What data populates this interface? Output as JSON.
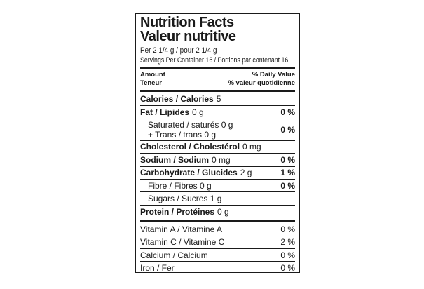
{
  "colors": {
    "text": "#1a1a1a",
    "background": "#ffffff",
    "rule": "#1a1a1a"
  },
  "label": {
    "title_en": "Nutrition Facts",
    "title_fr": "Valeur nutritive",
    "serving_line": "Per 2 1/4 g / pour 2 1/4 g",
    "servings_line": "Servings Per Container 16 / Portions par contenant 16",
    "amount_header": {
      "en": "Amount",
      "fr": "Teneur"
    },
    "daily_value_header": {
      "en": "% Daily Value",
      "fr": "% valeur quotidienne"
    },
    "rows": {
      "calories": {
        "bold": "Calories / Calories",
        "rest": "5",
        "dv": ""
      },
      "fat": {
        "bold": "Fat / Lipides",
        "rest": "0 g",
        "dv": "0 %"
      },
      "saturated": {
        "line1": "Saturated / saturés 0 g",
        "line2": "+ Trans / trans 0 g",
        "dv": "0 %"
      },
      "cholesterol": {
        "bold": "Cholesterol / Cholestérol",
        "rest": "0 mg",
        "dv": ""
      },
      "sodium": {
        "bold": "Sodium / Sodium",
        "rest": "0 mg",
        "dv": "0 %"
      },
      "carbohydrate": {
        "bold": "Carbohydrate / Glucides",
        "rest": "2 g",
        "dv": "1 %"
      },
      "fibre": {
        "plain": "Fibre / Fibres 0 g",
        "dv": "0 %"
      },
      "sugars": {
        "plain": "Sugars / Sucres 1 g",
        "dv": ""
      },
      "protein": {
        "bold": "Protein / Protéines",
        "rest": "0 g",
        "dv": ""
      },
      "vitamin_a": {
        "plain": "Vitamin A / Vitamine A",
        "dv": "0 %"
      },
      "vitamin_c": {
        "plain": "Vitamin C / Vitamine C",
        "dv": "2 %"
      },
      "calcium": {
        "plain": "Calcium / Calcium",
        "dv": "0 %"
      },
      "iron": {
        "plain": "Iron / Fer",
        "dv": "0 %"
      }
    }
  }
}
